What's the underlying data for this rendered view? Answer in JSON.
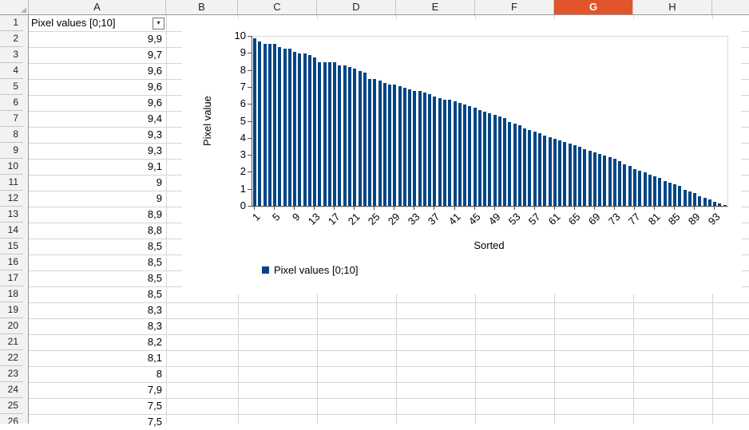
{
  "columns": {
    "labels": [
      "A",
      "B",
      "C",
      "D",
      "E",
      "F",
      "G",
      "H"
    ],
    "highlighted": "G"
  },
  "rows": [
    1,
    2,
    3,
    4,
    5,
    6,
    7,
    8,
    9,
    10,
    11,
    12,
    13,
    14,
    15,
    16,
    17,
    18,
    19,
    20,
    21,
    22,
    23,
    24,
    25,
    26
  ],
  "sheet": {
    "a1_label": "Pixel values [0;10]",
    "column_a_values": [
      "9,9",
      "9,7",
      "9,6",
      "9,6",
      "9,6",
      "9,4",
      "9,3",
      "9,3",
      "9,1",
      "9",
      "9",
      "8,9",
      "8,8",
      "8,5",
      "8,5",
      "8,5",
      "8,5",
      "8,3",
      "8,3",
      "8,2",
      "8,1",
      "8",
      "7,9",
      "7,5",
      "7,5"
    ]
  },
  "colors": {
    "selected_header": "#e2552b",
    "header_bg": "#f2f2f2",
    "gridline": "#d5d5d5",
    "bar": "#004586"
  },
  "chart_data": {
    "type": "bar",
    "series_name": "Pixel values [0;10]",
    "xlabel": "Sorted",
    "ylabel": "Pixel value",
    "ylim": [
      0,
      10
    ],
    "y_ticks": [
      0,
      1,
      2,
      3,
      4,
      5,
      6,
      7,
      8,
      9,
      10
    ],
    "x_tick_step": 4,
    "x_tick_labels": [
      "1",
      "5",
      "9",
      "13",
      "17",
      "21",
      "25",
      "29",
      "33",
      "37",
      "41",
      "45",
      "49",
      "53",
      "57",
      "61",
      "65",
      "69",
      "73",
      "77",
      "81",
      "85",
      "89",
      "93"
    ],
    "grid": false,
    "legend_position": "bottom-left",
    "bar_color": "#004586",
    "values": [
      9.9,
      9.7,
      9.6,
      9.6,
      9.6,
      9.4,
      9.3,
      9.3,
      9.1,
      9.0,
      9.0,
      8.9,
      8.8,
      8.5,
      8.5,
      8.5,
      8.5,
      8.3,
      8.3,
      8.2,
      8.1,
      8.0,
      7.9,
      7.5,
      7.5,
      7.4,
      7.3,
      7.2,
      7.2,
      7.1,
      7.0,
      6.9,
      6.8,
      6.8,
      6.7,
      6.6,
      6.5,
      6.4,
      6.3,
      6.3,
      6.2,
      6.1,
      6.0,
      5.9,
      5.8,
      5.7,
      5.6,
      5.5,
      5.4,
      5.3,
      5.2,
      5.0,
      4.9,
      4.8,
      4.6,
      4.5,
      4.4,
      4.3,
      4.2,
      4.1,
      4.0,
      3.9,
      3.8,
      3.7,
      3.6,
      3.5,
      3.4,
      3.3,
      3.2,
      3.1,
      3.0,
      2.9,
      2.8,
      2.7,
      2.5,
      2.4,
      2.2,
      2.1,
      2.0,
      1.9,
      1.8,
      1.7,
      1.5,
      1.4,
      1.3,
      1.2,
      1.0,
      0.9,
      0.8,
      0.6,
      0.5,
      0.4,
      0.3,
      0.2,
      0.1
    ]
  }
}
